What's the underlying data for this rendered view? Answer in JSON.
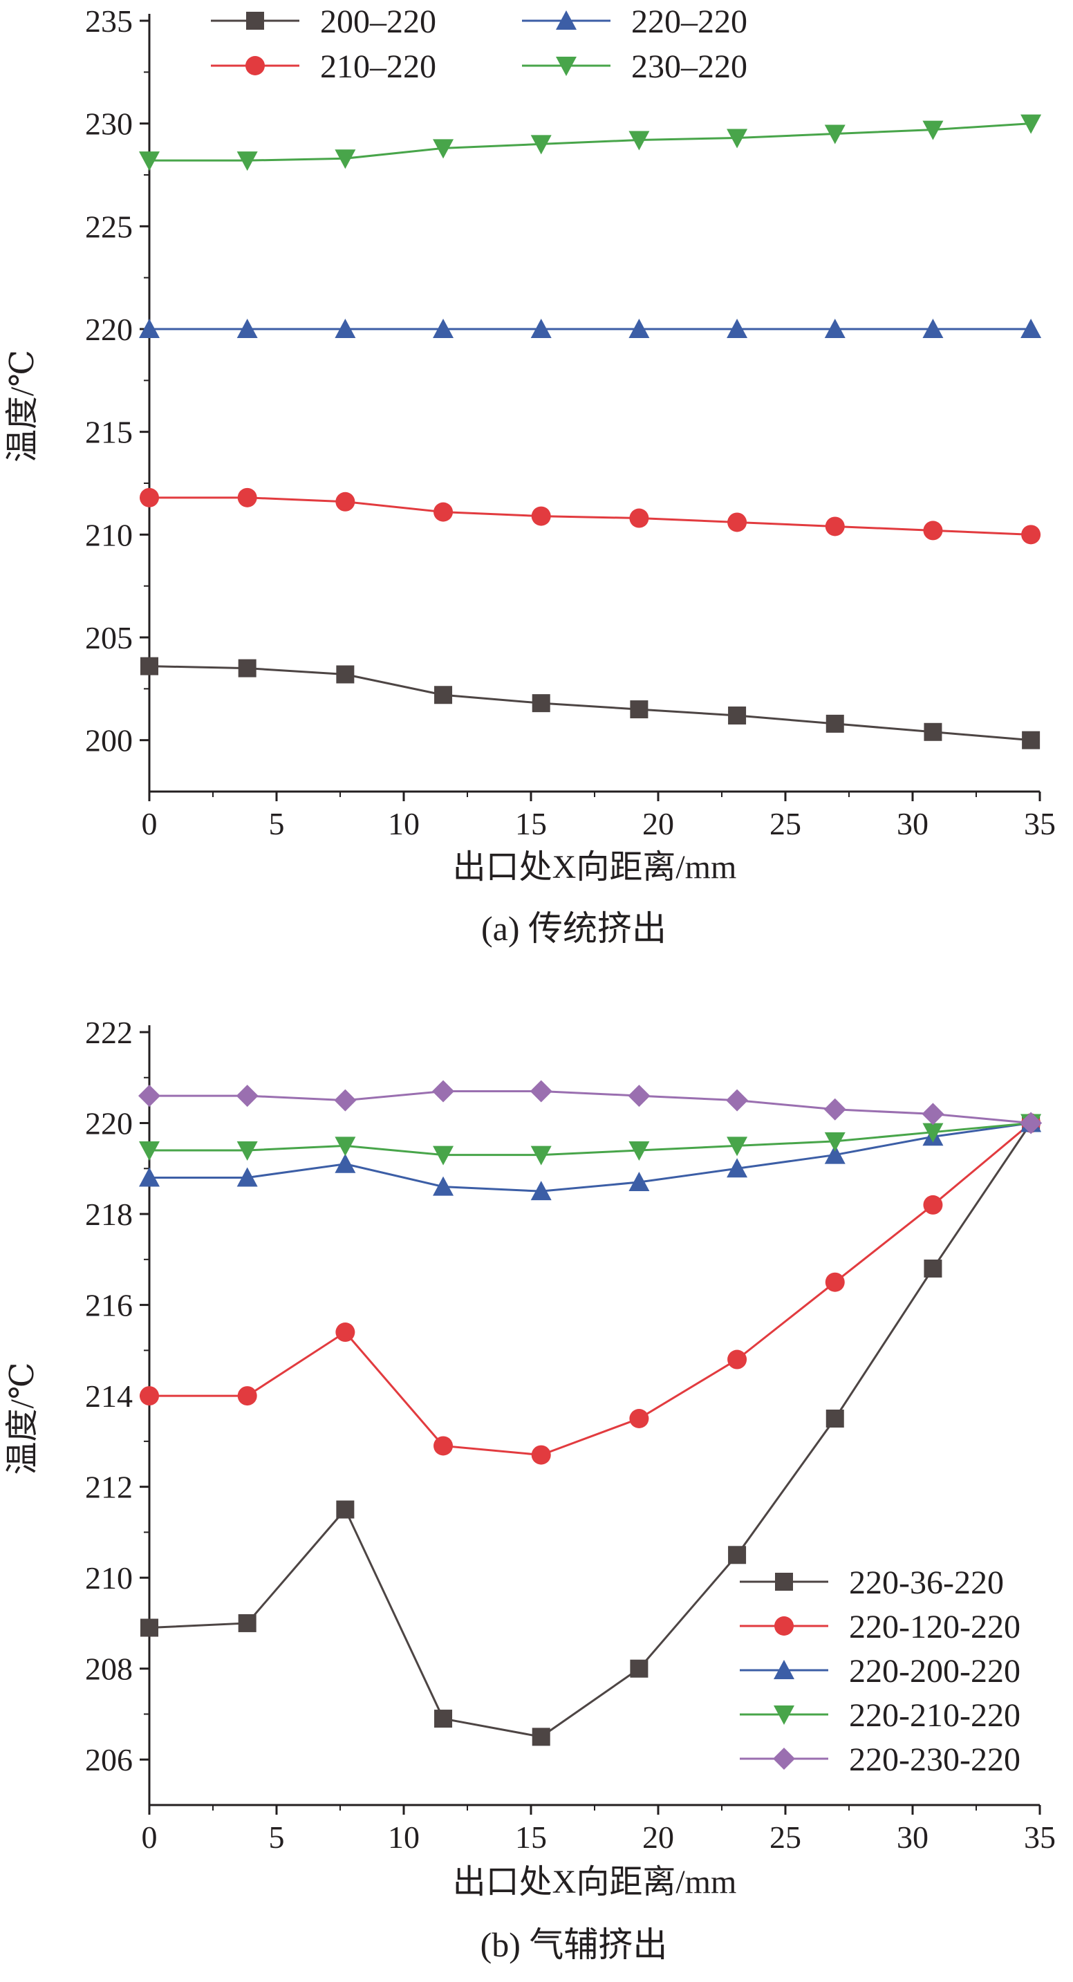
{
  "chart_data": [
    {
      "type": "line",
      "caption": "(a) 传统挤出",
      "xlabel": "出口处X向距离/mm",
      "ylabel": "温度/℃",
      "xlim": [
        0,
        35
      ],
      "ylim": [
        197.5,
        235
      ],
      "xticks": [
        0,
        5,
        10,
        15,
        20,
        25,
        30,
        35
      ],
      "yticks": [
        200,
        205,
        210,
        215,
        220,
        225,
        230,
        235
      ],
      "legend_position": "top",
      "x": [
        0,
        3.85,
        7.7,
        11.55,
        15.4,
        19.25,
        23.1,
        26.95,
        30.8,
        34.65
      ],
      "series": [
        {
          "name": "200–220",
          "color": "#4d4544",
          "marker": "square",
          "values": [
            203.6,
            203.5,
            203.2,
            202.2,
            201.8,
            201.5,
            201.2,
            200.8,
            200.4,
            200.0
          ]
        },
        {
          "name": "210–220",
          "color": "#e23b3f",
          "marker": "circle",
          "values": [
            211.8,
            211.8,
            211.6,
            211.1,
            210.9,
            210.8,
            210.6,
            210.4,
            210.2,
            210.0
          ]
        },
        {
          "name": "220–220",
          "color": "#3c5ea6",
          "marker": "triangle-up",
          "values": [
            220,
            220,
            220,
            220,
            220,
            220,
            220,
            220,
            220,
            220
          ]
        },
        {
          "name": "230–220",
          "color": "#48a54a",
          "marker": "triangle-down",
          "values": [
            228.2,
            228.2,
            228.3,
            228.8,
            229.0,
            229.2,
            229.3,
            229.5,
            229.7,
            230.0
          ]
        }
      ]
    },
    {
      "type": "line",
      "caption": "(b) 气辅挤出",
      "xlabel": "出口处X向距离/mm",
      "ylabel": "温度/℃",
      "xlim": [
        0,
        35
      ],
      "ylim": [
        205,
        222
      ],
      "xticks": [
        0,
        5,
        10,
        15,
        20,
        25,
        30,
        35
      ],
      "yticks": [
        206,
        208,
        210,
        212,
        214,
        216,
        218,
        220,
        222
      ],
      "legend_position": "bottom-right",
      "x": [
        0,
        3.85,
        7.7,
        11.55,
        15.4,
        19.25,
        23.1,
        26.95,
        30.8,
        34.65
      ],
      "series": [
        {
          "name": "220-36-220",
          "color": "#4d4544",
          "marker": "square",
          "values": [
            208.9,
            209.0,
            211.5,
            206.9,
            206.5,
            208.0,
            210.5,
            213.5,
            216.8,
            220.0
          ]
        },
        {
          "name": "220-120-220",
          "color": "#e23b3f",
          "marker": "circle",
          "values": [
            214.0,
            214.0,
            215.4,
            212.9,
            212.7,
            213.5,
            214.8,
            216.5,
            218.2,
            220.0
          ]
        },
        {
          "name": "220-200-220",
          "color": "#3c5ea6",
          "marker": "triangle-up",
          "values": [
            218.8,
            218.8,
            219.1,
            218.6,
            218.5,
            218.7,
            219.0,
            219.3,
            219.7,
            220.0
          ]
        },
        {
          "name": "220-210-220",
          "color": "#48a54a",
          "marker": "triangle-down",
          "values": [
            219.4,
            219.4,
            219.5,
            219.3,
            219.3,
            219.4,
            219.5,
            219.6,
            219.8,
            220.0
          ]
        },
        {
          "name": "220-230-220",
          "color": "#9a6fb0",
          "marker": "diamond",
          "values": [
            220.6,
            220.6,
            220.5,
            220.7,
            220.7,
            220.6,
            220.5,
            220.3,
            220.2,
            220.0
          ]
        }
      ]
    }
  ]
}
